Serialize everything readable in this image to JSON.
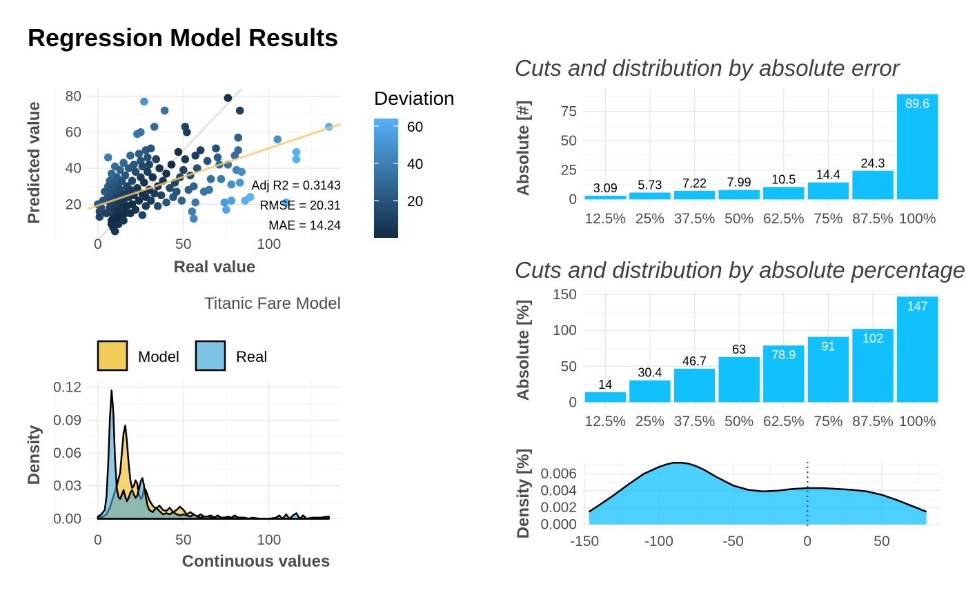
{
  "title": "Regression Model Results",
  "chart_data": [
    {
      "id": "scatter",
      "type": "scatter",
      "subtitle": "Titanic Fare Model",
      "xlabel": "Real value",
      "ylabel": "Predicted value",
      "xlim": [
        -6,
        142
      ],
      "ylim": [
        1,
        84
      ],
      "xticks": [
        0,
        50,
        100
      ],
      "yticks": [
        20,
        40,
        60,
        80
      ],
      "legend": {
        "title": "Deviation",
        "ticks": [
          20,
          40,
          60
        ],
        "range": [
          0,
          64
        ],
        "position": "right",
        "color_low": "#132b43",
        "color_high": "#56b1f7"
      },
      "stats": [
        "Adj R2 =  0.3143",
        "RMSE = 20.31",
        "MAE = 14.24"
      ],
      "fit_line": {
        "x": [
          -6,
          142
        ],
        "y": [
          17.4,
          64.5
        ],
        "color": "#f8c968"
      },
      "identity_line": {
        "color": "#d9d9d9"
      },
      "points": [
        [
          0,
          20
        ],
        [
          1,
          16
        ],
        [
          1,
          13
        ],
        [
          2,
          18
        ],
        [
          3,
          22
        ],
        [
          4,
          27
        ],
        [
          5,
          15
        ],
        [
          6,
          24
        ],
        [
          6,
          30
        ],
        [
          6,
          46
        ],
        [
          7,
          18
        ],
        [
          7,
          21
        ],
        [
          7,
          28
        ],
        [
          7,
          33
        ],
        [
          8,
          9
        ],
        [
          8,
          11
        ],
        [
          8,
          19
        ],
        [
          8,
          25
        ],
        [
          8,
          31
        ],
        [
          8,
          37
        ],
        [
          9,
          7
        ],
        [
          9,
          14
        ],
        [
          9,
          22
        ],
        [
          9,
          26
        ],
        [
          9,
          29
        ],
        [
          10,
          5
        ],
        [
          10,
          17
        ],
        [
          10,
          23
        ],
        [
          10,
          32
        ],
        [
          10,
          41
        ],
        [
          11,
          12
        ],
        [
          11,
          20
        ],
        [
          11,
          27
        ],
        [
          11,
          35
        ],
        [
          12,
          9
        ],
        [
          12,
          16
        ],
        [
          12,
          24
        ],
        [
          12,
          30
        ],
        [
          13,
          13
        ],
        [
          13,
          21
        ],
        [
          13,
          28
        ],
        [
          13,
          39
        ],
        [
          14,
          18
        ],
        [
          14,
          25
        ],
        [
          14,
          33
        ],
        [
          15,
          11
        ],
        [
          15,
          22
        ],
        [
          15,
          43
        ],
        [
          16,
          15
        ],
        [
          16,
          26
        ],
        [
          16,
          36
        ],
        [
          17,
          19
        ],
        [
          17,
          30
        ],
        [
          18,
          40
        ],
        [
          18,
          24
        ],
        [
          19,
          15
        ],
        [
          19,
          28
        ],
        [
          19,
          47
        ],
        [
          20,
          20
        ],
        [
          20,
          33
        ],
        [
          21,
          42
        ],
        [
          21,
          25
        ],
        [
          22,
          17
        ],
        [
          22,
          38
        ],
        [
          23,
          29
        ],
        [
          23,
          59
        ],
        [
          24,
          22
        ],
        [
          24,
          48
        ],
        [
          25,
          35
        ],
        [
          25,
          44
        ],
        [
          25,
          60
        ],
        [
          26,
          14
        ],
        [
          26,
          26
        ],
        [
          26,
          41
        ],
        [
          27,
          32
        ],
        [
          27,
          77
        ],
        [
          28,
          19
        ],
        [
          28,
          50
        ],
        [
          28,
          24
        ],
        [
          29,
          38
        ],
        [
          29,
          46
        ],
        [
          30,
          28
        ],
        [
          30,
          42
        ],
        [
          31,
          51
        ],
        [
          31,
          22
        ],
        [
          32,
          35
        ],
        [
          33,
          26
        ],
        [
          33,
          63
        ],
        [
          34,
          45
        ],
        [
          35,
          30
        ],
        [
          35,
          19
        ],
        [
          36,
          40
        ],
        [
          37,
          25
        ],
        [
          38,
          33
        ],
        [
          39,
          72
        ],
        [
          40,
          37
        ],
        [
          40,
          21
        ],
        [
          42,
          29
        ],
        [
          43,
          42
        ],
        [
          44,
          24
        ],
        [
          45,
          32
        ],
        [
          46,
          27
        ],
        [
          47,
          49
        ],
        [
          48,
          35
        ],
        [
          49,
          22
        ],
        [
          50,
          39
        ],
        [
          51,
          45
        ],
        [
          51,
          63
        ],
        [
          52,
          60
        ],
        [
          53,
          28
        ],
        [
          54,
          36
        ],
        [
          55,
          16
        ],
        [
          56,
          30
        ],
        [
          56,
          12
        ],
        [
          57,
          21
        ],
        [
          57,
          47
        ],
        [
          58,
          40
        ],
        [
          60,
          50
        ],
        [
          62,
          27
        ],
        [
          64,
          44
        ],
        [
          65,
          28
        ],
        [
          66,
          34
        ],
        [
          69,
          51
        ],
        [
          70,
          46
        ],
        [
          71,
          42
        ],
        [
          72,
          34
        ],
        [
          74,
          21
        ],
        [
          75,
          17
        ],
        [
          76,
          42
        ],
        [
          76,
          79
        ],
        [
          78,
          31
        ],
        [
          78,
          22
        ],
        [
          80,
          47
        ],
        [
          81,
          39
        ],
        [
          82,
          57
        ],
        [
          82,
          50
        ],
        [
          83,
          32
        ],
        [
          83,
          72
        ],
        [
          84,
          38
        ],
        [
          86,
          22
        ],
        [
          89,
          24
        ],
        [
          105,
          56
        ],
        [
          110,
          21
        ],
        [
          116,
          45
        ],
        [
          116,
          49
        ],
        [
          135,
          63
        ]
      ]
    },
    {
      "id": "density",
      "type": "area",
      "xlabel": "Continuous values",
      "ylabel": "Density",
      "xlim": [
        -6,
        142
      ],
      "ylim": [
        -0.006,
        0.126
      ],
      "xticks": [
        0,
        50,
        100
      ],
      "yticks": [
        0.0,
        0.03,
        0.06,
        0.09,
        0.12
      ],
      "ytick_labels": [
        "0.00",
        "0.03",
        "0.06",
        "0.09",
        "0.12"
      ],
      "legend": {
        "position": "top",
        "entries": [
          {
            "label": "Model",
            "color": "#f2cc5a"
          },
          {
            "label": "Real",
            "color": "#7cc3e6"
          }
        ]
      },
      "series": [
        {
          "name": "Model",
          "color": "#f2cc5a",
          "x": [
            0,
            3,
            5,
            7,
            9,
            11,
            13,
            14,
            15,
            16,
            17,
            18,
            19,
            20,
            21,
            22,
            23,
            24,
            25,
            26,
            27,
            28,
            30,
            32,
            34,
            36,
            38,
            40,
            42,
            44,
            46,
            48,
            50,
            52,
            54,
            56,
            58,
            60,
            62,
            64,
            66,
            68,
            70,
            72,
            74,
            76,
            78,
            80,
            82,
            84,
            86,
            90,
            95,
            100,
            105,
            110,
            115,
            120,
            125,
            130,
            135
          ],
          "y": [
            0.001,
            0.002,
            0.004,
            0.01,
            0.02,
            0.03,
            0.042,
            0.06,
            0.078,
            0.085,
            0.07,
            0.05,
            0.035,
            0.028,
            0.03,
            0.035,
            0.032,
            0.022,
            0.018,
            0.02,
            0.028,
            0.026,
            0.017,
            0.012,
            0.009,
            0.012,
            0.008,
            0.007,
            0.01,
            0.006,
            0.008,
            0.011,
            0.008,
            0.004,
            0.006,
            0.004,
            0.002,
            0.004,
            0.002,
            0.002,
            0.003,
            0.001,
            0.002,
            0.001,
            0.001,
            0.001,
            0.001,
            0.002,
            0.001,
            0.001,
            0,
            0,
            0,
            0,
            0,
            0,
            0,
            0,
            0,
            0,
            0
          ]
        },
        {
          "name": "Real",
          "color": "#7cc3e6",
          "x": [
            0,
            2,
            4,
            5,
            6,
            7,
            8,
            9,
            10,
            11,
            12,
            13,
            14,
            15,
            16,
            17,
            18,
            19,
            20,
            21,
            22,
            23,
            24,
            25,
            26,
            27,
            28,
            29,
            30,
            32,
            34,
            36,
            38,
            40,
            42,
            44,
            46,
            48,
            50,
            52,
            54,
            56,
            58,
            60,
            62,
            65,
            68,
            70,
            72,
            74,
            76,
            78,
            80,
            82,
            84,
            86,
            88,
            90,
            95,
            100,
            104,
            106,
            108,
            110,
            112,
            114,
            116,
            118,
            120,
            122,
            125,
            130,
            135
          ],
          "y": [
            0.002,
            0.004,
            0.008,
            0.02,
            0.05,
            0.09,
            0.117,
            0.098,
            0.055,
            0.028,
            0.02,
            0.018,
            0.022,
            0.026,
            0.02,
            0.016,
            0.019,
            0.024,
            0.026,
            0.022,
            0.019,
            0.021,
            0.027,
            0.034,
            0.037,
            0.03,
            0.02,
            0.012,
            0.008,
            0.006,
            0.01,
            0.007,
            0.004,
            0.005,
            0.004,
            0.006,
            0.004,
            0.003,
            0.004,
            0.003,
            0.002,
            0.004,
            0.002,
            0.001,
            0.002,
            0.002,
            0.001,
            0.003,
            0.001,
            0.001,
            0.002,
            0.001,
            0.003,
            0.001,
            0.001,
            0.001,
            0,
            0.001,
            0,
            0,
            0.001,
            0.003,
            0,
            0.004,
            0,
            0.003,
            0.005,
            0,
            0.003,
            0,
            0.001,
            0.001,
            0.002
          ]
        }
      ]
    },
    {
      "id": "abs-error",
      "type": "bar",
      "title": "Cuts and distribution by absolute error",
      "xlabel": "",
      "ylabel": "Absolute [#]",
      "categories": [
        "12.5%",
        "25%",
        "37.5%",
        "50%",
        "62.5%",
        "75%",
        "87.5%",
        "100%"
      ],
      "values": [
        3.09,
        5.73,
        7.22,
        7.99,
        10.5,
        14.4,
        24.3,
        89.6
      ],
      "labels": [
        "3.09",
        "5.73",
        "7.22",
        "7.99",
        "10.5",
        "14.4",
        "24.3",
        "89.6"
      ],
      "ylim": [
        -4.6,
        94
      ],
      "yticks": [
        0,
        25,
        50,
        75
      ],
      "color": "#10c0ff"
    },
    {
      "id": "abs-pct",
      "type": "bar",
      "title": "Cuts and distribution by absolute percentage",
      "xlabel": "",
      "ylabel": "Absolute [%]",
      "categories": [
        "12.5%",
        "25%",
        "37.5%",
        "50%",
        "62.5%",
        "75%",
        "87.5%",
        "100%"
      ],
      "values": [
        14,
        30.4,
        46.7,
        63,
        78.9,
        91,
        102,
        147
      ],
      "labels": [
        "14",
        "30.4",
        "46.7",
        "63",
        "78.9",
        "91",
        "102",
        "147"
      ],
      "ylim": [
        -7.3,
        154
      ],
      "yticks": [
        0,
        50,
        100,
        150
      ],
      "color": "#10c0ff"
    },
    {
      "id": "pct-density",
      "type": "area",
      "xlabel": "",
      "ylabel": "Density [%]",
      "xlim": [
        -151,
        89
      ],
      "ylim": [
        -0.00035,
        0.0074
      ],
      "xticks": [
        -150,
        -100,
        -50,
        0,
        50
      ],
      "yticks": [
        0.0,
        0.002,
        0.004,
        0.006
      ],
      "ytick_labels": [
        "0.000",
        "0.002",
        "0.004",
        "0.006"
      ],
      "vline": 0,
      "color": "#10c0ff",
      "series": [
        {
          "name": "",
          "x": [
            -147,
            -140,
            -130,
            -120,
            -110,
            -100,
            -95,
            -90,
            -85,
            -80,
            -75,
            -70,
            -60,
            -50,
            -40,
            -30,
            -20,
            -10,
            0,
            10,
            20,
            30,
            40,
            50,
            60,
            70,
            80
          ],
          "y": [
            0.0015,
            0.0023,
            0.0035,
            0.0048,
            0.006,
            0.0068,
            0.0071,
            0.0073,
            0.0073,
            0.0072,
            0.0069,
            0.0065,
            0.0055,
            0.0046,
            0.0041,
            0.0039,
            0.004,
            0.0042,
            0.0043,
            0.0043,
            0.0042,
            0.0041,
            0.0039,
            0.0035,
            0.0029,
            0.0022,
            0.0015
          ]
        }
      ]
    }
  ]
}
